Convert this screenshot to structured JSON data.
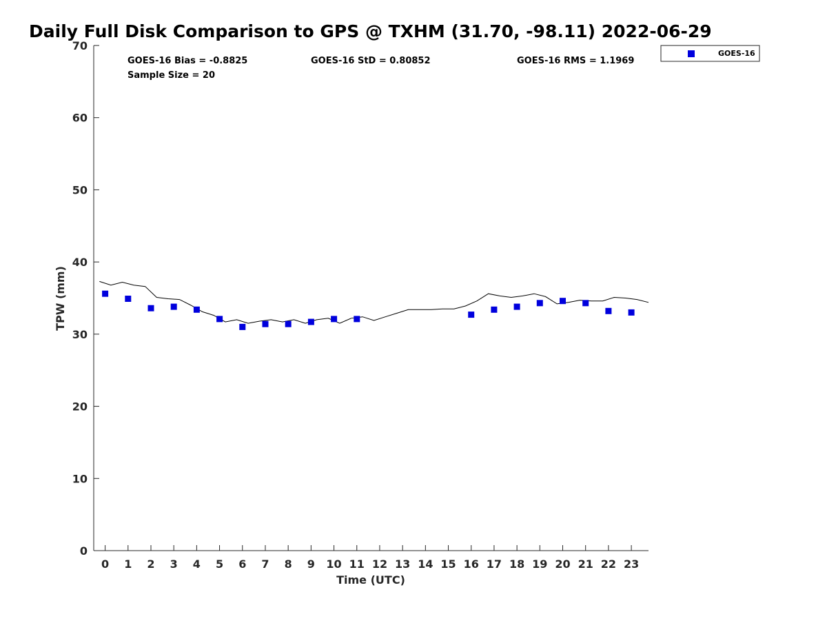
{
  "chart_data": {
    "type": "scatter",
    "title": "Daily Full Disk Comparison to GPS @ TXHM (31.70, -98.11) 2022-06-29",
    "xlabel": "Time (UTC)",
    "ylabel": "TPW (mm)",
    "xlim": [
      -0.5,
      23.75
    ],
    "ylim": [
      0,
      70
    ],
    "xticks": [
      "0",
      "1",
      "2",
      "3",
      "4",
      "5",
      "6",
      "7",
      "8",
      "9",
      "10",
      "11",
      "12",
      "13",
      "14",
      "15",
      "16",
      "17",
      "18",
      "19",
      "20",
      "21",
      "22",
      "23"
    ],
    "yticks": [
      "0",
      "10",
      "20",
      "30",
      "40",
      "50",
      "60",
      "70"
    ],
    "grid": false,
    "legend_position": "outside-top-right",
    "stats": {
      "bias": "GOES-16 Bias = -0.8825",
      "std": "GOES-16 StD = 0.80852",
      "rms": "GOES-16 RMS = 1.1969",
      "sample_size": "Sample Size = 20"
    },
    "series": [
      {
        "name": "GOES-16",
        "kind": "scatter",
        "marker": "square",
        "color": "#0000dd",
        "x": [
          0,
          1,
          2,
          3,
          4,
          5,
          6,
          7,
          8,
          9,
          10,
          11,
          16,
          17,
          18,
          19,
          20,
          21,
          22,
          23
        ],
        "y": [
          35.6,
          34.9,
          33.6,
          33.8,
          33.4,
          32.1,
          31.0,
          31.4,
          31.4,
          31.7,
          32.1,
          32.1,
          32.7,
          33.4,
          33.8,
          34.3,
          34.6,
          34.3,
          33.2,
          33.0
        ]
      },
      {
        "kind": "line",
        "color": "#000000",
        "x": [
          -0.25,
          0.25,
          0.75,
          1.25,
          1.75,
          2.25,
          2.75,
          3.25,
          3.75,
          4.25,
          4.75,
          5.25,
          5.75,
          6.25,
          6.75,
          7.25,
          7.75,
          8.25,
          8.75,
          9.25,
          9.75,
          10.25,
          10.75,
          11.25,
          11.75,
          12.25,
          12.75,
          13.25,
          13.75,
          14.25,
          14.75,
          15.25,
          15.75,
          16.25,
          16.75,
          17.25,
          17.75,
          18.25,
          18.75,
          19.25,
          19.75,
          20.25,
          20.75,
          21.25,
          21.75,
          22.25,
          22.75,
          23.25,
          23.75
        ],
        "y": [
          37.3,
          36.8,
          37.2,
          36.8,
          36.6,
          35.1,
          34.9,
          34.8,
          34.0,
          33.1,
          32.6,
          31.7,
          32.0,
          31.5,
          31.8,
          32.0,
          31.7,
          32.0,
          31.5,
          32.0,
          32.2,
          31.5,
          32.2,
          32.4,
          31.9,
          32.4,
          32.9,
          33.4,
          33.4,
          33.4,
          33.5,
          33.5,
          33.9,
          34.6,
          35.6,
          35.3,
          35.1,
          35.3,
          35.6,
          35.2,
          34.2,
          34.4,
          34.7,
          34.6,
          34.6,
          35.1,
          35.0,
          34.8,
          34.4
        ]
      }
    ]
  },
  "colors": {
    "marker": "#0000dd",
    "line": "#000000",
    "axis": "#262626"
  }
}
